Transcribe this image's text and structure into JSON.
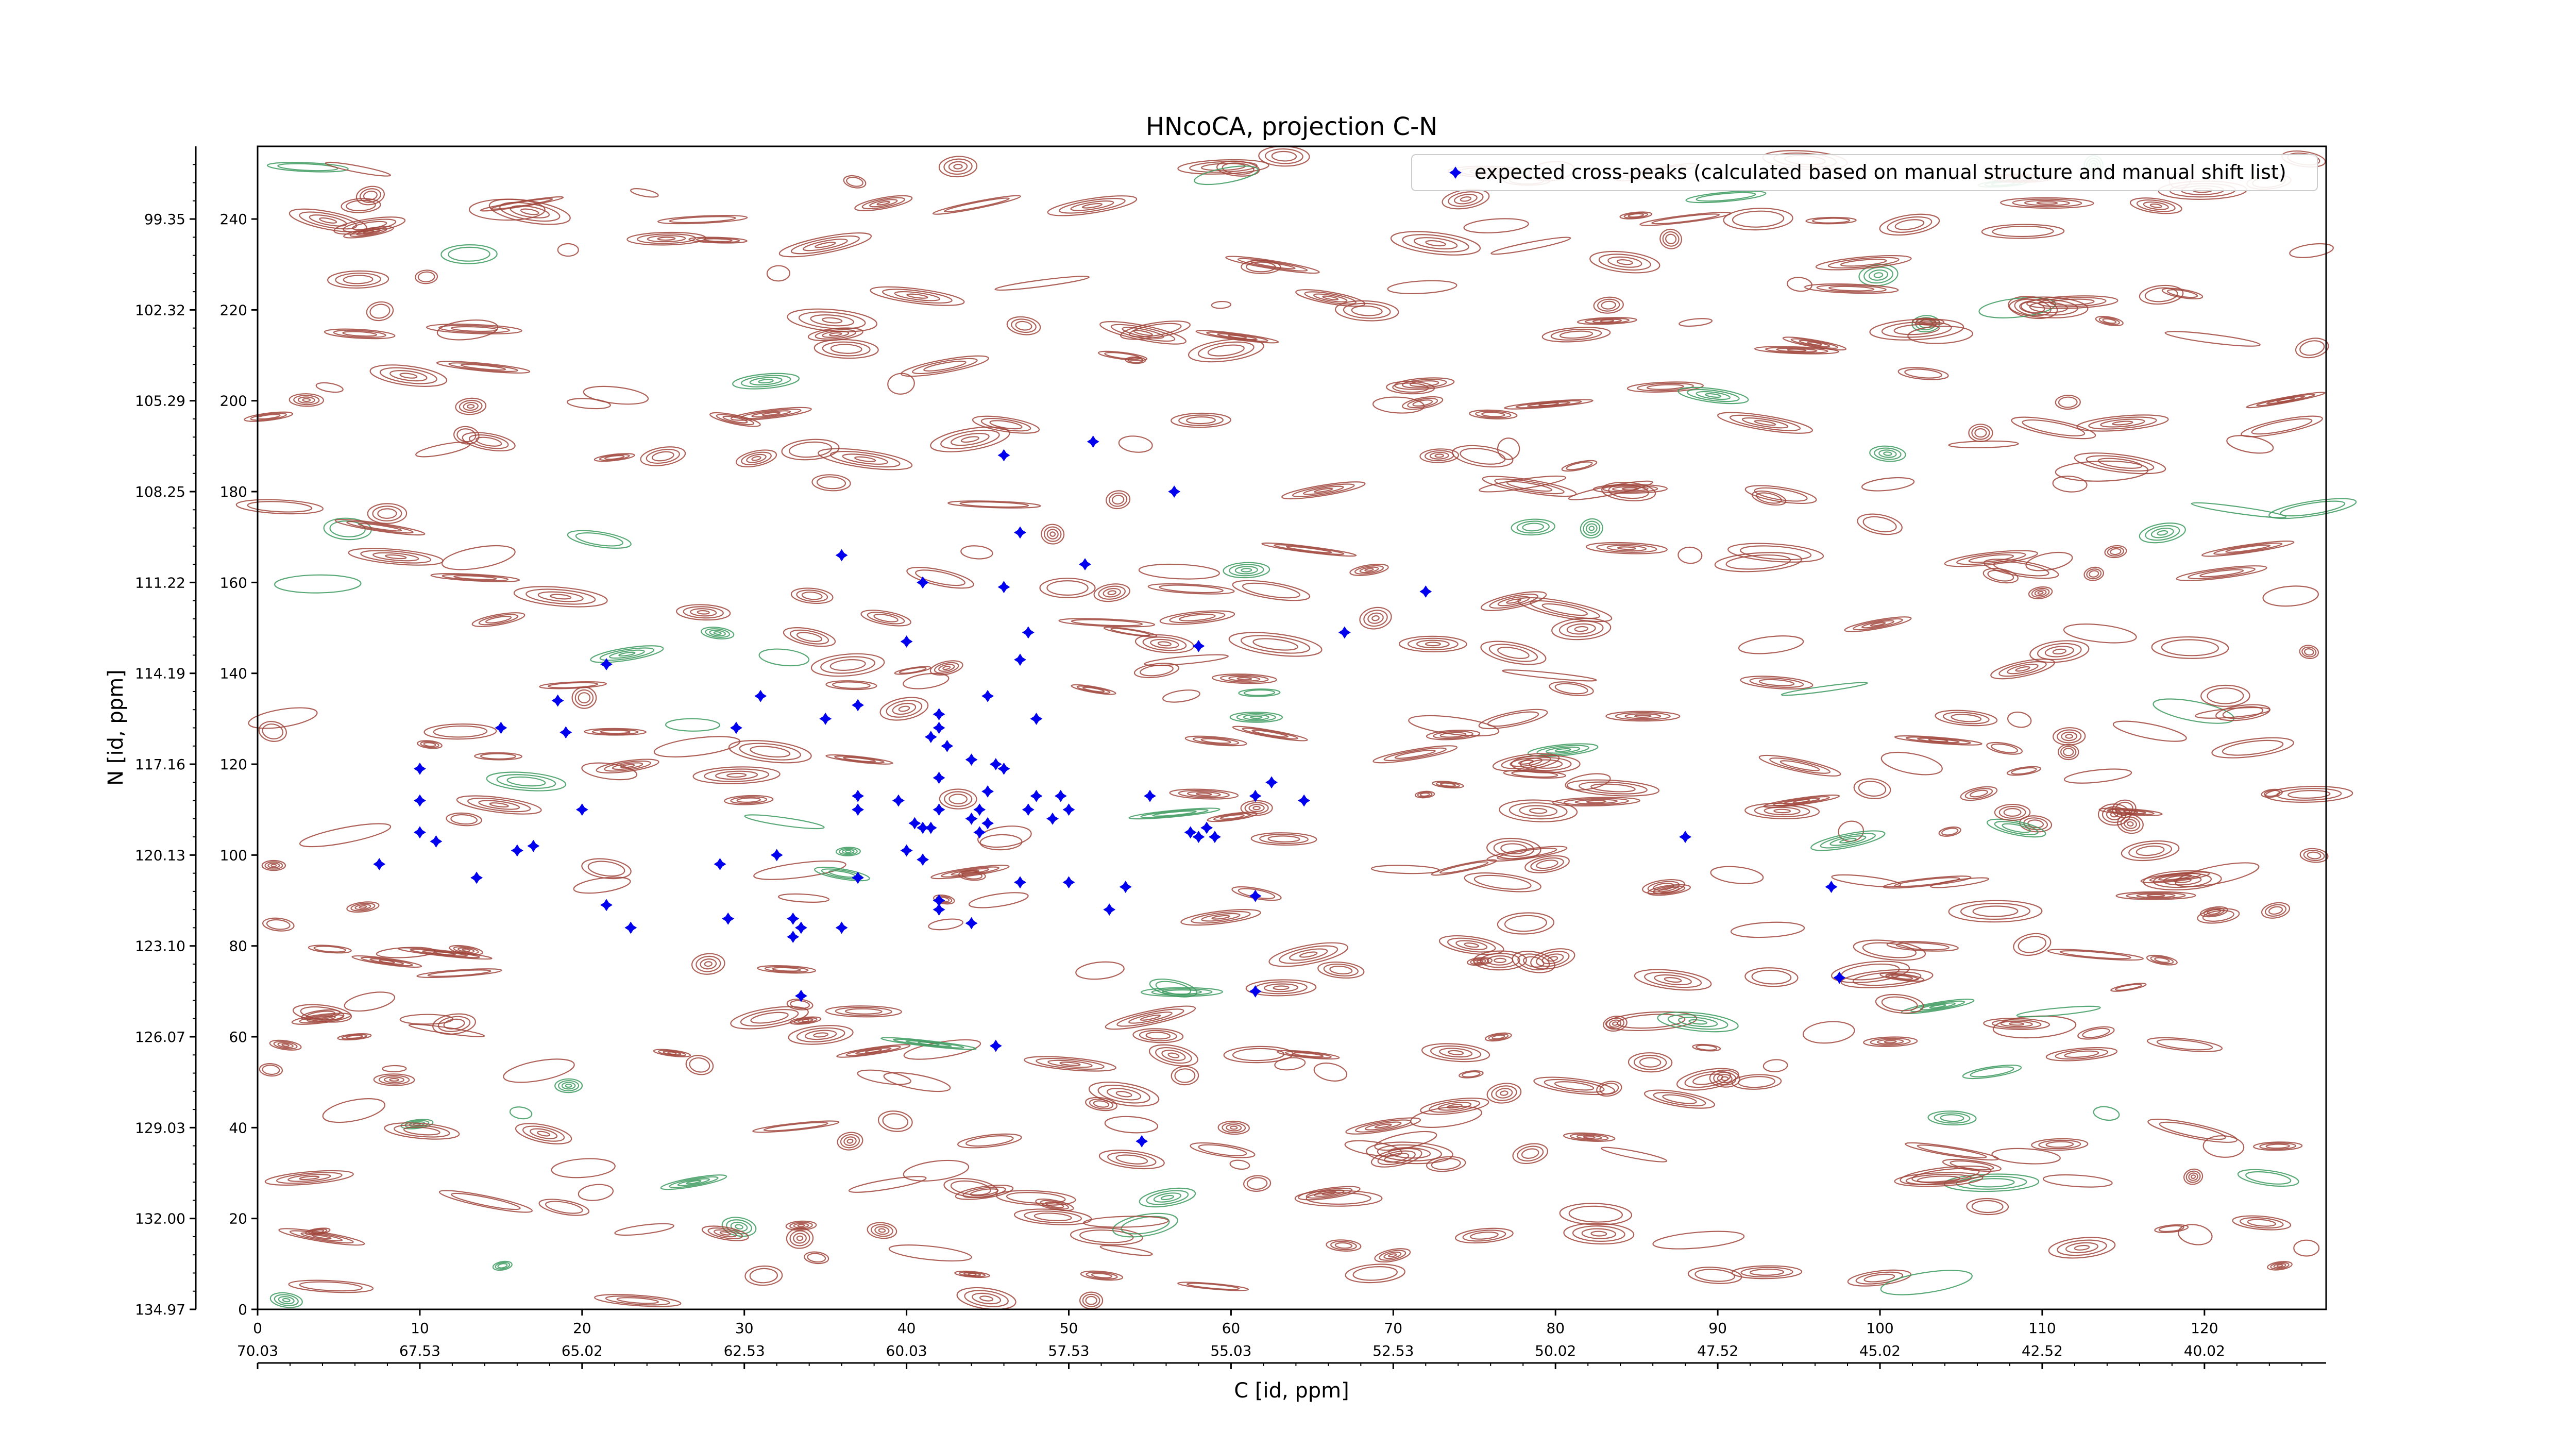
{
  "chart_data": {
    "type": "scatter",
    "title": "HNcoCA, projection C-N",
    "xlabel": "C [id, ppm]",
    "ylabel": "N [id, ppm]",
    "xlim": [
      0,
      127.5
    ],
    "ylim": [
      0,
      256
    ],
    "x_ticks": [
      0,
      10,
      20,
      30,
      40,
      50,
      60,
      70,
      80,
      90,
      100,
      110,
      120
    ],
    "y_ticks": [
      0,
      20,
      40,
      60,
      80,
      100,
      120,
      140,
      160,
      180,
      200,
      220,
      240
    ],
    "x_ppm_ticks": [
      "70.03",
      "67.53",
      "65.02",
      "62.53",
      "60.03",
      "57.53",
      "55.03",
      "52.53",
      "50.02",
      "47.52",
      "45.02",
      "42.52",
      "40.02"
    ],
    "y_ppm_ticks": [
      "134.97",
      "132.00",
      "129.03",
      "126.07",
      "123.10",
      "120.13",
      "117.16",
      "114.19",
      "111.22",
      "108.25",
      "105.29",
      "102.32",
      "99.35"
    ],
    "legend": {
      "position": "top-right",
      "label": "expected cross-peaks (calculated based on manual structure and manual shift list)"
    },
    "contour_colors": {
      "positive": "#a0453b",
      "negative": "#3c9a5f"
    },
    "series": [
      {
        "name": "expected cross-peaks (calculated based on manual structure and manual shift list)",
        "color": "#0000ee",
        "points": [
          [
            46,
            188
          ],
          [
            51.5,
            191
          ],
          [
            56.5,
            180
          ],
          [
            47,
            171
          ],
          [
            36,
            166
          ],
          [
            51,
            164
          ],
          [
            41,
            160
          ],
          [
            46,
            159
          ],
          [
            72,
            158
          ],
          [
            47.5,
            149
          ],
          [
            67,
            149
          ],
          [
            40,
            147
          ],
          [
            58,
            146
          ],
          [
            47,
            143
          ],
          [
            21.5,
            142
          ],
          [
            45,
            135
          ],
          [
            31,
            135
          ],
          [
            18.5,
            134
          ],
          [
            37,
            133
          ],
          [
            42,
            131
          ],
          [
            48,
            130
          ],
          [
            35,
            130
          ],
          [
            15,
            128
          ],
          [
            29.5,
            128
          ],
          [
            42,
            128
          ],
          [
            19,
            127
          ],
          [
            41.5,
            126
          ],
          [
            42.5,
            124
          ],
          [
            44,
            121
          ],
          [
            45.5,
            120
          ],
          [
            10,
            119
          ],
          [
            46,
            119
          ],
          [
            42,
            117
          ],
          [
            62.5,
            116
          ],
          [
            48,
            113
          ],
          [
            49.5,
            113
          ],
          [
            55,
            113
          ],
          [
            61.5,
            113
          ],
          [
            64.5,
            112
          ],
          [
            10,
            112
          ],
          [
            39.5,
            112
          ],
          [
            45,
            114
          ],
          [
            37,
            113
          ],
          [
            37,
            110
          ],
          [
            20,
            110
          ],
          [
            42,
            110
          ],
          [
            44.5,
            110
          ],
          [
            47.5,
            110
          ],
          [
            50,
            110
          ],
          [
            49,
            108
          ],
          [
            44,
            108
          ],
          [
            41.5,
            106
          ],
          [
            40.5,
            107
          ],
          [
            45,
            107
          ],
          [
            44.5,
            105
          ],
          [
            41,
            106
          ],
          [
            58.5,
            106
          ],
          [
            57.5,
            105
          ],
          [
            58,
            104
          ],
          [
            59,
            104
          ],
          [
            10,
            105
          ],
          [
            11,
            103
          ],
          [
            17,
            102
          ],
          [
            16,
            101
          ],
          [
            32,
            100
          ],
          [
            40,
            101
          ],
          [
            41,
            99
          ],
          [
            28.5,
            98
          ],
          [
            7.5,
            98
          ],
          [
            13.5,
            95
          ],
          [
            37,
            95
          ],
          [
            47,
            94
          ],
          [
            50,
            94
          ],
          [
            53.5,
            93
          ],
          [
            61.5,
            91
          ],
          [
            97,
            93
          ],
          [
            88,
            104
          ],
          [
            42,
            90
          ],
          [
            21.5,
            89
          ],
          [
            52.5,
            88
          ],
          [
            42,
            88
          ],
          [
            29,
            86
          ],
          [
            33,
            86
          ],
          [
            44,
            85
          ],
          [
            23,
            84
          ],
          [
            33.5,
            84
          ],
          [
            36,
            84
          ],
          [
            33,
            82
          ],
          [
            61.5,
            70
          ],
          [
            97.5,
            73
          ],
          [
            33.5,
            69
          ],
          [
            45.5,
            58
          ],
          [
            54.5,
            37
          ]
        ]
      }
    ]
  }
}
